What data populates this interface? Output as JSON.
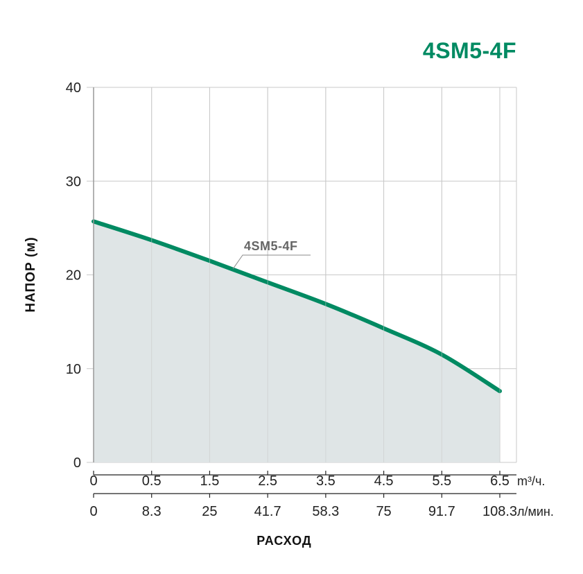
{
  "colors": {
    "curve": "#008a62",
    "title": "#008a62",
    "fill": "#dfe5e6",
    "grid": "#c8c8c8",
    "axis": "#999999"
  },
  "chart_data": {
    "type": "area",
    "title": "4SM5-4F",
    "ylabel": "НАПОР (м)",
    "xlabel": "РАСХОД",
    "ylim": [
      0,
      40
    ],
    "yticks": [
      "0",
      "10",
      "20",
      "30",
      "40"
    ],
    "x_primary": {
      "unit": "m³/ч.",
      "ticks": [
        "0",
        "0.5",
        "1.5",
        "2.5",
        "3.5",
        "4.5",
        "5.5",
        "6.5"
      ]
    },
    "x_secondary": {
      "unit": "л/мин.",
      "ticks": [
        "0",
        "8.3",
        "25",
        "41.7",
        "58.3",
        "75",
        "91.7",
        "108.3"
      ]
    },
    "grid": true,
    "series": [
      {
        "name": "4SM5-4F",
        "x": [
          0,
          0.5,
          1.5,
          2.5,
          3.5,
          4.5,
          5.5,
          6.5
        ],
        "y": [
          25.7,
          23.7,
          21.5,
          19.2,
          16.9,
          14.3,
          11.5,
          7.6
        ]
      }
    ]
  }
}
